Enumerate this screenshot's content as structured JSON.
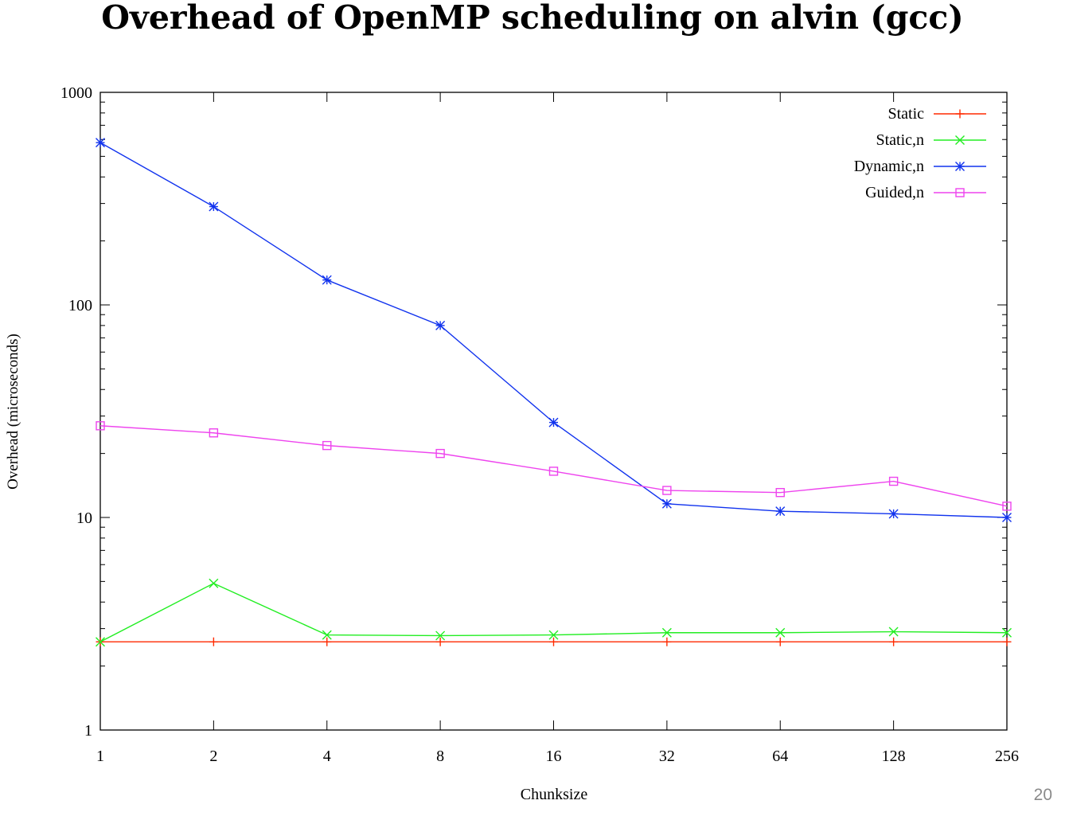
{
  "title": "Overhead of OpenMP scheduling on alvin (gcc)",
  "slide_number": "20",
  "colors": {
    "static": "#ff2a00",
    "static_n": "#22ee22",
    "dynamic_n": "#1133ee",
    "guided_n": "#ee44ee"
  },
  "chart_data": {
    "type": "line",
    "title": "Overhead of OpenMP scheduling on alvin (gcc)",
    "xlabel": "Chunksize",
    "ylabel": "Overhead (microseconds)",
    "x_scale": "log2",
    "y_scale": "log10",
    "categories": [
      "1",
      "2",
      "4",
      "8",
      "16",
      "32",
      "64",
      "128",
      "256"
    ],
    "x": [
      1,
      2,
      4,
      8,
      16,
      32,
      64,
      128,
      256
    ],
    "xlim": [
      1,
      256
    ],
    "ylim": [
      1,
      1000
    ],
    "yticks": [
      "1",
      "10",
      "100",
      "1000"
    ],
    "grid": false,
    "legend_position": "top-right",
    "series": [
      {
        "name": "Static",
        "marker": "plus",
        "values": [
          2.6,
          2.6,
          2.6,
          2.6,
          2.6,
          2.6,
          2.6,
          2.6,
          2.6
        ]
      },
      {
        "name": "Static,n",
        "marker": "cross",
        "values": [
          2.6,
          4.9,
          2.8,
          2.78,
          2.8,
          2.87,
          2.87,
          2.9,
          2.87
        ]
      },
      {
        "name": "Dynamic,n",
        "marker": "star",
        "values": [
          580,
          290,
          131,
          80,
          28,
          11.6,
          10.7,
          10.4,
          10.0
        ]
      },
      {
        "name": "Guided,n",
        "marker": "square",
        "values": [
          27,
          25,
          21.8,
          20,
          16.5,
          13.4,
          13.1,
          14.8,
          11.3
        ]
      }
    ]
  }
}
